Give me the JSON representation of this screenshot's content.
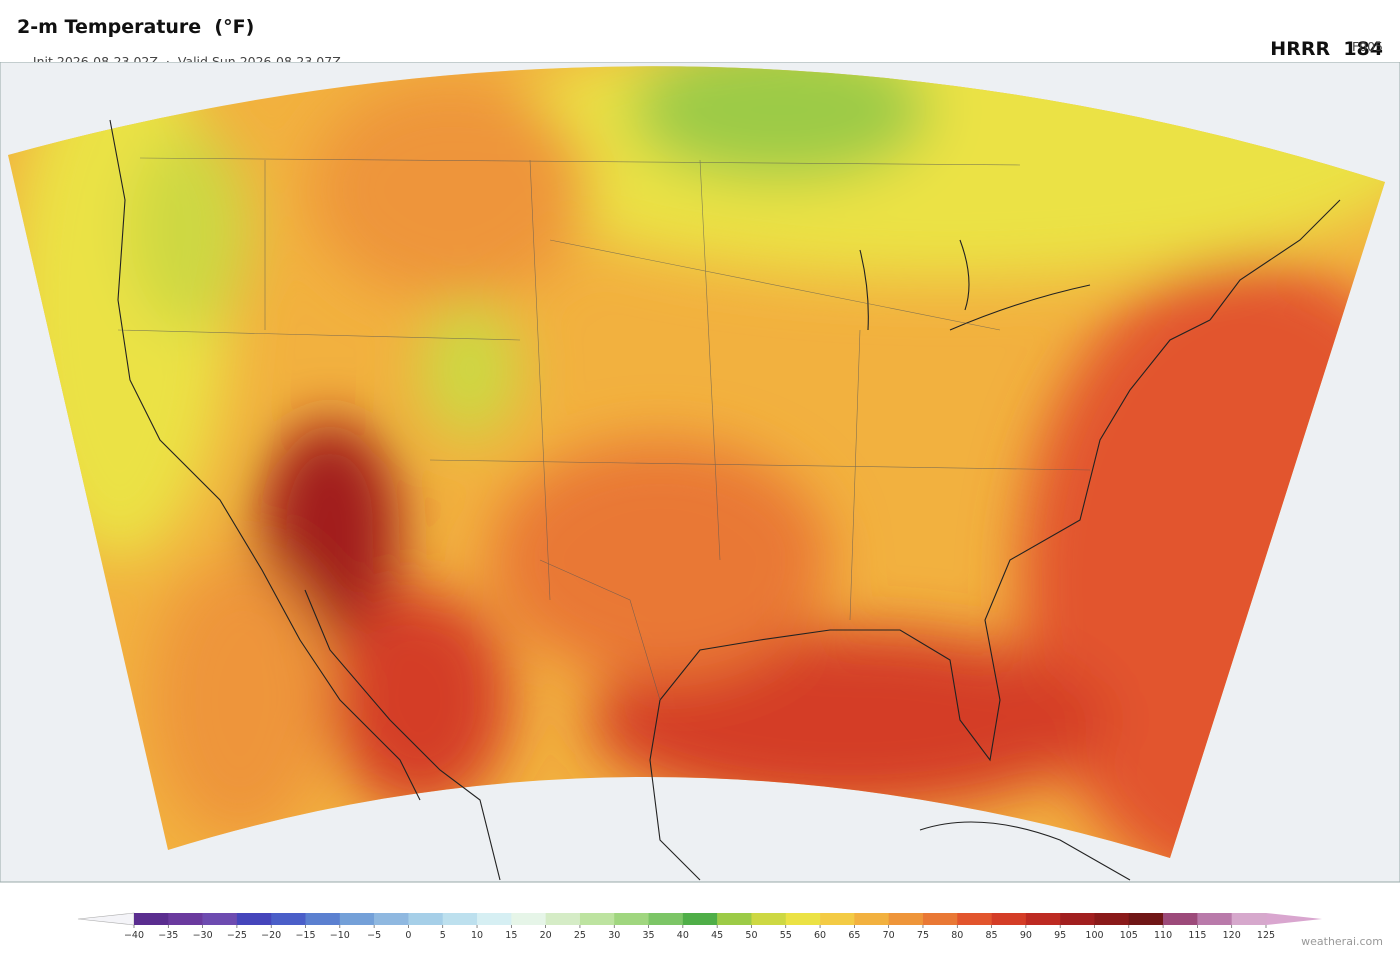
{
  "header": {
    "title": "2-m Temperature  (°F)",
    "init": "Init 2026-08-23 02Z",
    "separator": "·",
    "valid": "Valid Sun 2026-08-23 07Z",
    "model": "HRRR",
    "run": "184",
    "forecast": "F005"
  },
  "colorbar": {
    "ticks": [
      {
        "value": -40,
        "label": "−40"
      },
      {
        "value": -35,
        "label": "−35"
      },
      {
        "value": -30,
        "label": "−30"
      },
      {
        "value": -25,
        "label": "−25"
      },
      {
        "value": -20,
        "label": "−20"
      },
      {
        "value": -15,
        "label": "−15"
      },
      {
        "value": -10,
        "label": "−10"
      },
      {
        "value": -5,
        "label": "−5"
      },
      0,
      5,
      10,
      15,
      20,
      25,
      30,
      35,
      40,
      45,
      50,
      55,
      60,
      65,
      70,
      75,
      80,
      85,
      90,
      95,
      100,
      105,
      110,
      115,
      120,
      125
    ],
    "colors": [
      "#5a2d8f",
      "#6a3a9e",
      "#6d4bb0",
      "#4545bb",
      "#4a5ec8",
      "#5b80d0",
      "#74a0d8",
      "#8fb8e0",
      "#a6cfe8",
      "#bde0ee",
      "#d6eff3",
      "#e6f5e8",
      "#d5ecc6",
      "#bde3a0",
      "#a0d67f",
      "#7cc566",
      "#4fae48",
      "#9ccb47",
      "#cdd843",
      "#ebe245",
      "#f3cb45",
      "#f2b13f",
      "#ee953a",
      "#e97835",
      "#e2552d",
      "#d43d27",
      "#bd2a22",
      "#a11f1f",
      "#8a1a1a",
      "#701616",
      "#9c4a7a",
      "#b97aaa",
      "#d6a8cc"
    ],
    "under_color": "#f4f4f8",
    "over_color": "#d9a6cf"
  },
  "watermark": "weatherai.com"
}
